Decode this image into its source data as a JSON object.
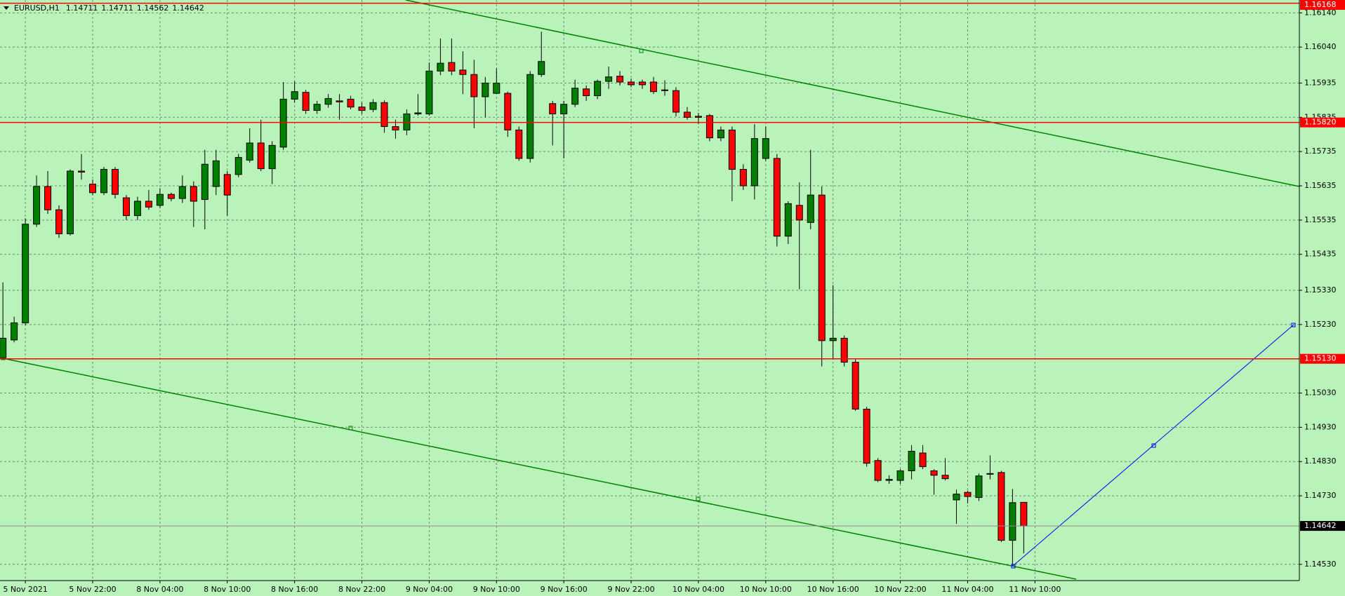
{
  "chart_data": {
    "type": "candlestick",
    "symbol": "EURUSD,H1",
    "background": "#b9f3b9",
    "up_color": "#008000",
    "down_color": "#ff0000",
    "level_color": "#ff0000",
    "grid": true,
    "x": [
      0,
      1,
      2,
      3,
      4,
      5,
      6,
      7,
      8,
      9,
      10,
      11,
      12,
      13,
      14,
      15,
      16,
      17,
      18,
      19,
      20,
      21,
      22,
      23,
      24,
      25,
      26,
      27,
      28,
      29,
      30,
      31,
      32,
      33,
      34,
      35,
      36,
      37,
      38,
      39,
      40,
      41,
      42,
      43,
      44,
      45,
      46,
      47,
      48,
      49,
      50,
      51,
      52,
      53,
      54,
      55,
      56,
      57,
      58,
      59,
      60,
      61,
      62,
      63,
      64,
      65,
      66,
      67,
      68,
      69,
      70,
      71,
      72,
      73,
      74,
      75,
      76,
      77,
      78,
      79,
      80,
      81,
      82,
      83,
      84,
      85,
      86,
      87,
      88,
      89,
      90,
      91
    ],
    "open": [
      1.15133,
      1.15185,
      1.15235,
      1.15523,
      1.15633,
      1.15565,
      1.15495,
      1.15678,
      1.1564,
      1.15615,
      1.15683,
      1.156,
      1.15548,
      1.1559,
      1.15578,
      1.1561,
      1.15598,
      1.15633,
      1.15595,
      1.15633,
      1.15668,
      1.15668,
      1.1571,
      1.1576,
      1.15685,
      1.15748,
      1.15888,
      1.15908,
      1.15855,
      1.15873,
      1.15883,
      1.15888,
      1.15865,
      1.15858,
      1.15878,
      1.15808,
      1.15798,
      1.15845,
      1.15845,
      1.1597,
      1.15995,
      1.15973,
      1.1596,
      1.15895,
      1.15905,
      1.15905,
      1.15798,
      1.15715,
      1.1596,
      1.15875,
      1.15845,
      1.15873,
      1.15918,
      1.15898,
      1.1594,
      1.15955,
      1.15938,
      1.15938,
      1.15938,
      1.15915,
      1.15913,
      1.1585,
      1.15838,
      1.1584,
      1.15775,
      1.15798,
      1.15683,
      1.15635,
      1.15715,
      1.15715,
      1.15488,
      1.15578,
      1.15528,
      1.15608,
      1.15183,
      1.1519,
      1.1512,
      1.14983,
      1.14833,
      1.14775,
      1.14775,
      1.14803,
      1.14855,
      1.14803,
      1.1479,
      1.14718,
      1.1474,
      1.14725,
      1.14795,
      1.14798,
      1.146,
      1.14711
    ],
    "high": [
      1.15353,
      1.15253,
      1.1554,
      1.15665,
      1.15678,
      1.15578,
      1.15683,
      1.15728,
      1.15653,
      1.1569,
      1.1569,
      1.15608,
      1.15603,
      1.15623,
      1.15628,
      1.15615,
      1.15665,
      1.15648,
      1.1574,
      1.1574,
      1.15678,
      1.15728,
      1.15803,
      1.15828,
      1.15765,
      1.15938,
      1.1594,
      1.15915,
      1.15883,
      1.15903,
      1.15903,
      1.15898,
      1.15878,
      1.15888,
      1.15885,
      1.15828,
      1.15858,
      1.15903,
      1.15995,
      1.16065,
      1.16065,
      1.16028,
      1.16003,
      1.15953,
      1.15978,
      1.1591,
      1.15808,
      1.1597,
      1.16085,
      1.15883,
      1.15883,
      1.15945,
      1.15928,
      1.15945,
      1.15983,
      1.1597,
      1.15948,
      1.15945,
      1.15953,
      1.15943,
      1.15923,
      1.15865,
      1.15848,
      1.15845,
      1.15808,
      1.15808,
      1.15698,
      1.15815,
      1.15808,
      1.15728,
      1.1559,
      1.15645,
      1.1574,
      1.15633,
      1.15345,
      1.15198,
      1.15128,
      1.1499,
      1.1484,
      1.1479,
      1.14808,
      1.14878,
      1.14878,
      1.14808,
      1.1484,
      1.14748,
      1.14745,
      1.14795,
      1.14848,
      1.14803,
      1.1475,
      1.14711
    ],
    "low": [
      1.15128,
      1.15178,
      1.15228,
      1.15515,
      1.15553,
      1.15483,
      1.1549,
      1.15653,
      1.15608,
      1.15608,
      1.15598,
      1.15535,
      1.15535,
      1.15565,
      1.1557,
      1.1559,
      1.15585,
      1.15515,
      1.15508,
      1.15608,
      1.15548,
      1.1566,
      1.15703,
      1.15678,
      1.1564,
      1.1574,
      1.15878,
      1.15845,
      1.15845,
      1.15863,
      1.15828,
      1.15858,
      1.15845,
      1.1585,
      1.1579,
      1.15773,
      1.15783,
      1.1584,
      1.1584,
      1.15958,
      1.15958,
      1.15903,
      1.15803,
      1.15835,
      1.15903,
      1.15778,
      1.15708,
      1.15703,
      1.15953,
      1.15753,
      1.15715,
      1.15865,
      1.15883,
      1.15888,
      1.15918,
      1.15928,
      1.15923,
      1.15918,
      1.15903,
      1.15898,
      1.15838,
      1.15828,
      1.15815,
      1.15765,
      1.15765,
      1.1559,
      1.15623,
      1.15595,
      1.15708,
      1.15458,
      1.15465,
      1.15333,
      1.15508,
      1.15108,
      1.15128,
      1.15108,
      1.14978,
      1.14815,
      1.1477,
      1.14765,
      1.14765,
      1.14778,
      1.14808,
      1.14733,
      1.14775,
      1.14648,
      1.14708,
      1.14715,
      1.14778,
      1.14595,
      1.14525,
      1.14562
    ],
    "close": [
      1.1519,
      1.15235,
      1.15523,
      1.15633,
      1.15565,
      1.15495,
      1.15678,
      1.15675,
      1.15615,
      1.15683,
      1.1561,
      1.15548,
      1.1559,
      1.15573,
      1.1561,
      1.15598,
      1.15633,
      1.1559,
      1.15698,
      1.15708,
      1.15608,
      1.15718,
      1.1576,
      1.15685,
      1.15753,
      1.15888,
      1.1591,
      1.15855,
      1.15873,
      1.1589,
      1.1588,
      1.15865,
      1.15855,
      1.15878,
      1.15808,
      1.15798,
      1.15845,
      1.15848,
      1.1597,
      1.15993,
      1.1597,
      1.1596,
      1.15895,
      1.15935,
      1.15935,
      1.15798,
      1.15715,
      1.1596,
      1.15998,
      1.15845,
      1.15873,
      1.1592,
      1.15898,
      1.1594,
      1.15953,
      1.15938,
      1.1593,
      1.1593,
      1.1591,
      1.15913,
      1.1585,
      1.15835,
      1.15835,
      1.15775,
      1.15798,
      1.15683,
      1.15635,
      1.15773,
      1.15773,
      1.15488,
      1.15583,
      1.15535,
      1.15608,
      1.15183,
      1.1519,
      1.1512,
      1.14983,
      1.14825,
      1.14775,
      1.14778,
      1.14803,
      1.1486,
      1.14815,
      1.1479,
      1.1478,
      1.14735,
      1.14728,
      1.14788,
      1.14793,
      1.146,
      1.1471,
      1.14642
    ],
    "xlim": [
      -0.26,
      115.57
    ],
    "xticks": [
      {
        "value": 2,
        "label": "5 Nov 2021"
      },
      {
        "value": 8,
        "label": "5 Nov 22:00"
      },
      {
        "value": 14,
        "label": "8 Nov 04:00"
      },
      {
        "value": 20,
        "label": "8 Nov 10:00"
      },
      {
        "value": 26,
        "label": "8 Nov 16:00"
      },
      {
        "value": 32,
        "label": "8 Nov 22:00"
      },
      {
        "value": 38,
        "label": "9 Nov 04:00"
      },
      {
        "value": 44,
        "label": "9 Nov 10:00"
      },
      {
        "value": 50,
        "label": "9 Nov 16:00"
      },
      {
        "value": 56,
        "label": "9 Nov 22:00"
      },
      {
        "value": 62,
        "label": "10 Nov 04:00"
      },
      {
        "value": 68,
        "label": "10 Nov 10:00"
      },
      {
        "value": 74,
        "label": "10 Nov 16:00"
      },
      {
        "value": 80,
        "label": "10 Nov 22:00"
      },
      {
        "value": 86,
        "label": "11 Nov 04:00"
      },
      {
        "value": 92,
        "label": "11 Nov 10:00"
      }
    ],
    "ylim": [
      1.144825,
      1.161775
    ],
    "yticks": [
      {
        "value": 1.1614,
        "label": "1.16140"
      },
      {
        "value": 1.1604,
        "label": "1.16040"
      },
      1.15935,
      1.15835,
      1.15735,
      1.15635,
      1.15535,
      1.15435,
      {
        "value": 1.1533,
        "label": "1.15330"
      },
      {
        "value": 1.1523,
        "label": "1.15230"
      },
      {
        "value": 1.1503,
        "label": "1.15030"
      },
      {
        "value": 1.1493,
        "label": "1.14930"
      },
      {
        "value": 1.1483,
        "label": "1.14830"
      },
      {
        "value": 1.1473,
        "label": "1.14730"
      },
      {
        "value": 1.1453,
        "label": "1.14530"
      }
    ],
    "levels": [
      1.16168,
      {
        "value": 1.1582,
        "label": "1.15820"
      },
      {
        "value": 1.1513,
        "label": "1.15130"
      }
    ]
  }
}
